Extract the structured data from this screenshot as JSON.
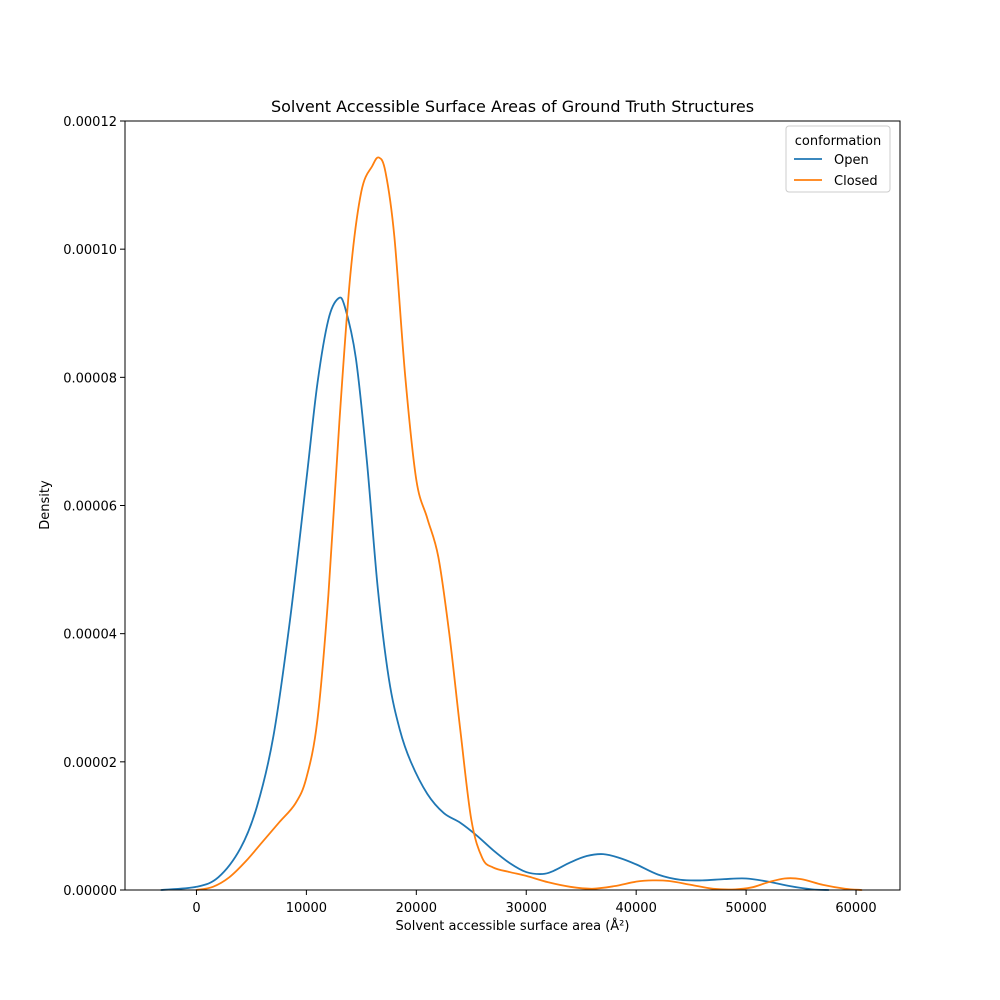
{
  "chart_data": {
    "type": "line",
    "title": "Solvent Accessible Surface Areas of Ground Truth Structures",
    "xlabel": "Solvent accessible surface area (Å²)",
    "ylabel": "Density",
    "xlim": [
      -6500,
      64000
    ],
    "ylim": [
      0,
      0.00012
    ],
    "xticks": [
      0,
      10000,
      20000,
      30000,
      40000,
      50000,
      60000
    ],
    "xtick_labels": [
      "0",
      "10000",
      "20000",
      "30000",
      "40000",
      "50000",
      "60000"
    ],
    "yticks": [
      0,
      2e-05,
      4e-05,
      6e-05,
      8e-05,
      0.0001,
      0.00012
    ],
    "ytick_labels": [
      "0.00000",
      "0.00002",
      "0.00004",
      "0.00006",
      "0.00008",
      "0.00010",
      "0.00012"
    ],
    "grid": false,
    "legend": {
      "title": "conformation",
      "position": "top-right"
    },
    "series": [
      {
        "name": "Open",
        "color": "#1f77b4",
        "x": [
          -3200,
          0,
          2000,
          4000,
          5500,
          7000,
          8500,
          10000,
          11000,
          12000,
          12900,
          13500,
          14500,
          15500,
          16500,
          17500,
          18500,
          19500,
          21000,
          22500,
          24000,
          25500,
          27000,
          28500,
          30000,
          31500,
          32500,
          34000,
          35500,
          37000,
          38500,
          40000,
          42000,
          44000,
          46000,
          48000,
          50000,
          52000,
          54000,
          56000,
          57500
        ],
        "y": [
          0,
          5e-07,
          2e-06,
          6.5e-06,
          1.3e-05,
          2.4e-05,
          4.2e-05,
          6.4e-05,
          7.9e-05,
          8.9e-05,
          9.23e-05,
          9.1e-05,
          8.3e-05,
          6.7e-05,
          4.7e-05,
          3.3e-05,
          2.5e-05,
          2e-05,
          1.5e-05,
          1.2e-05,
          1.05e-05,
          8.5e-06,
          6.2e-06,
          4.2e-06,
          2.8e-06,
          2.5e-06,
          3e-06,
          4.3e-06,
          5.3e-06,
          5.6e-06,
          5e-06,
          4e-06,
          2.4e-06,
          1.6e-06,
          1.5e-06,
          1.7e-06,
          1.8e-06,
          1.3e-06,
          6e-07,
          1e-07,
          0
        ]
      },
      {
        "name": "Closed",
        "color": "#ff7f0e",
        "x": [
          0,
          1500,
          3000,
          4500,
          6000,
          7500,
          9000,
          10000,
          11000,
          12000,
          13000,
          14000,
          15000,
          16000,
          16600,
          17200,
          18000,
          19000,
          20000,
          21000,
          22000,
          23000,
          24000,
          25000,
          26000,
          27000,
          28500,
          30000,
          32000,
          34000,
          36000,
          38000,
          40000,
          41500,
          43000,
          45000,
          47000,
          49000,
          50500,
          52000,
          53500,
          55000,
          57000,
          59000,
          60500
        ],
        "y": [
          0,
          5e-07,
          2e-06,
          4.5e-06,
          7.5e-06,
          1.05e-05,
          1.35e-05,
          1.75e-05,
          2.65e-05,
          4.6e-05,
          7.3e-05,
          9.6e-05,
          0.000109,
          0.000113,
          0.0001143,
          0.000112,
          0.000102,
          8e-05,
          6.4e-05,
          5.8e-05,
          5.2e-05,
          4e-05,
          2.5e-05,
          1.1e-05,
          5e-06,
          3.5e-06,
          2.8e-06,
          2.2e-06,
          1.2e-06,
          5e-07,
          2e-07,
          6e-07,
          1.3e-06,
          1.5e-06,
          1.4e-06,
          8e-07,
          2e-07,
          1e-07,
          4e-07,
          1.2e-06,
          1.8e-06,
          1.7e-06,
          8e-07,
          2e-07,
          0
        ]
      }
    ]
  }
}
